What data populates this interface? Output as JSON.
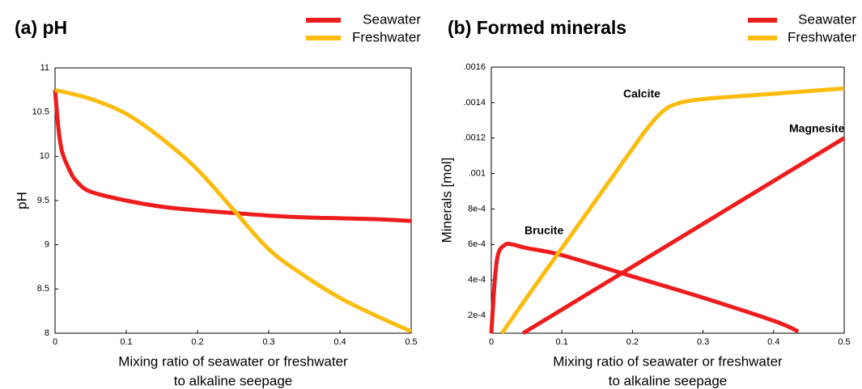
{
  "chart_data": [
    {
      "type": "line",
      "title": "(a) pH",
      "ylabel": "pH",
      "xlabel": [
        "Mixing ratio of seawater or freshwater",
        "to alkaline seepage"
      ],
      "xlim": [
        0,
        0.5
      ],
      "xticks": [
        0,
        0.1,
        0.2,
        0.3,
        0.4,
        0.5
      ],
      "ylim": [
        8,
        11
      ],
      "yticks": [
        8,
        8.5,
        9,
        9.5,
        10,
        10.5,
        11
      ],
      "series": [
        {
          "name": "Seawater",
          "color": "#ee1c1c",
          "x": [
            0,
            0.005,
            0.01,
            0.02,
            0.03,
            0.05,
            0.1,
            0.15,
            0.2,
            0.25,
            0.3,
            0.35,
            0.4,
            0.45,
            0.5
          ],
          "values": [
            10.75,
            10.3,
            10.05,
            9.85,
            9.72,
            9.6,
            9.5,
            9.43,
            9.39,
            9.36,
            9.33,
            9.31,
            9.3,
            9.29,
            9.27
          ]
        },
        {
          "name": "Freshwater",
          "color": "#fbbc0e",
          "x": [
            0,
            0.05,
            0.1,
            0.15,
            0.2,
            0.25,
            0.3,
            0.35,
            0.4,
            0.45,
            0.5
          ],
          "values": [
            10.75,
            10.65,
            10.48,
            10.2,
            9.85,
            9.4,
            8.95,
            8.65,
            8.4,
            8.2,
            8.02
          ]
        }
      ]
    },
    {
      "type": "line",
      "title": "(b) Formed minerals",
      "ylabel": "Minerals [mol]",
      "xlabel": [
        "Mixing ratio of seawater or freshwater",
        "to alkaline seepage"
      ],
      "xlim": [
        0,
        0.5
      ],
      "xticks": [
        0,
        0.1,
        0.2,
        0.3,
        0.4,
        0.5
      ],
      "ylim": [
        0.0001,
        0.0016
      ],
      "yticks": [
        {
          "value": 0.0002,
          "label": "2e-4"
        },
        {
          "value": 0.0004,
          "label": "4e-4"
        },
        {
          "value": 0.0006,
          "label": "6e-4"
        },
        {
          "value": 0.0008,
          "label": "8e-4"
        },
        {
          "value": 0.001,
          "label": ".001"
        },
        {
          "value": 0.0012,
          "label": ".0012"
        },
        {
          "value": 0.0014,
          "label": ".0014"
        },
        {
          "value": 0.0016,
          "label": ".0016"
        }
      ],
      "legend": [
        {
          "name": "Seawater",
          "color": "#ee1c1c"
        },
        {
          "name": "Freshwater",
          "color": "#fbbc0e"
        }
      ],
      "series": [
        {
          "name": "Brucite",
          "color": "#ee1c1c",
          "x": [
            0,
            0.005,
            0.01,
            0.02,
            0.03,
            0.05,
            0.1,
            0.2,
            0.3,
            0.4,
            0.435
          ],
          "values": [
            0.0001,
            0.0004,
            0.00055,
            0.0006,
            0.0006,
            0.00058,
            0.00054,
            0.00042,
            0.0003,
            0.00017,
            0.00011
          ]
        },
        {
          "name": "Calcite",
          "color": "#fbbc0e",
          "x": [
            0.015,
            0.05,
            0.1,
            0.15,
            0.2,
            0.22,
            0.24,
            0.26,
            0.3,
            0.4,
            0.5
          ],
          "values": [
            0.0001,
            0.0003,
            0.00058,
            0.00086,
            0.00114,
            0.00125,
            0.00134,
            0.00139,
            0.00142,
            0.00145,
            0.00148
          ]
        },
        {
          "name": "Magnesite",
          "color": "#ee1c1c",
          "x": [
            0.045,
            0.5
          ],
          "values": [
            0.0001,
            0.0012
          ]
        }
      ]
    }
  ]
}
